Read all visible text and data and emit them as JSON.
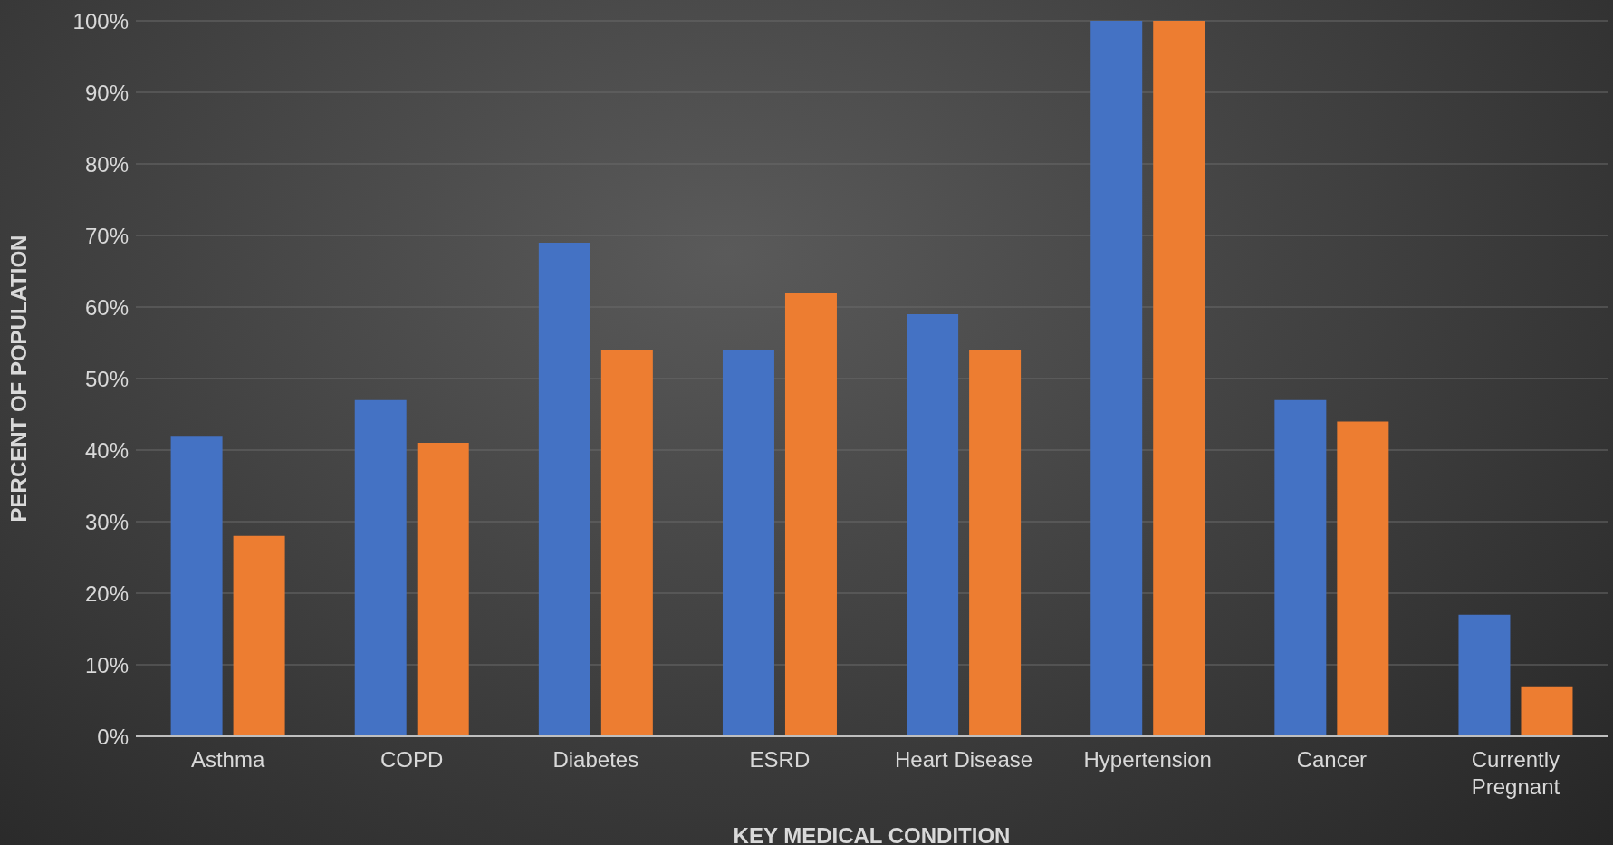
{
  "chart_data": {
    "type": "bar",
    "xlabel": "KEY MEDICAL CONDITION",
    "ylabel": "PERCENT OF POPULATION",
    "categories": [
      "Asthma",
      "COPD",
      "Diabetes",
      "ESRD",
      "Heart Disease",
      "Hypertension",
      "Cancer",
      "Currently Pregnant"
    ],
    "series": [
      {
        "color": "#4472c4",
        "values": [
          42,
          47,
          69,
          54,
          59,
          100,
          47,
          17
        ]
      },
      {
        "color": "#ed7d31",
        "values": [
          28,
          41,
          54,
          62,
          54,
          100,
          44,
          7
        ]
      }
    ],
    "ylim": [
      0,
      100
    ],
    "yticks": [
      {
        "value": 0,
        "label": "0%"
      },
      {
        "value": 10,
        "label": "10%"
      },
      {
        "value": 20,
        "label": "20%"
      },
      {
        "value": 30,
        "label": "30%"
      },
      {
        "value": 40,
        "label": "40%"
      },
      {
        "value": 50,
        "label": "50%"
      },
      {
        "value": 60,
        "label": "60%"
      },
      {
        "value": 70,
        "label": "70%"
      },
      {
        "value": 80,
        "label": "80%"
      },
      {
        "value": 90,
        "label": "90%"
      },
      {
        "value": 100,
        "label": "100%"
      }
    ],
    "grid": "y"
  }
}
